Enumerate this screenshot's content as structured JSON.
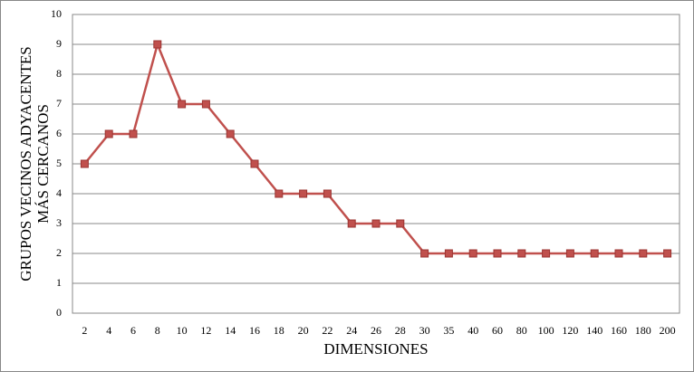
{
  "chart_data": {
    "type": "line",
    "x_label": "DIMENSIONES",
    "y_label": [
      "GRUPOS VECINOS ADYACENTES",
      "MÁS CERCANOS"
    ],
    "categories": [
      "2",
      "4",
      "6",
      "8",
      "10",
      "12",
      "14",
      "16",
      "18",
      "20",
      "22",
      "24",
      "26",
      "28",
      "30",
      "35",
      "40",
      "60",
      "80",
      "100",
      "120",
      "140",
      "160",
      "180",
      "200"
    ],
    "series": [
      {
        "color": "#c0504d",
        "values": [
          5,
          6,
          6,
          9,
          7,
          7,
          6,
          5,
          4,
          4,
          4,
          3,
          3,
          3,
          2,
          2,
          2,
          2,
          2,
          2,
          2,
          2,
          2,
          2,
          2
        ]
      }
    ],
    "ylim": [
      0,
      10
    ],
    "yticks": [
      0,
      1,
      2,
      3,
      4,
      5,
      6,
      7,
      8,
      9,
      10
    ],
    "grid": true
  }
}
